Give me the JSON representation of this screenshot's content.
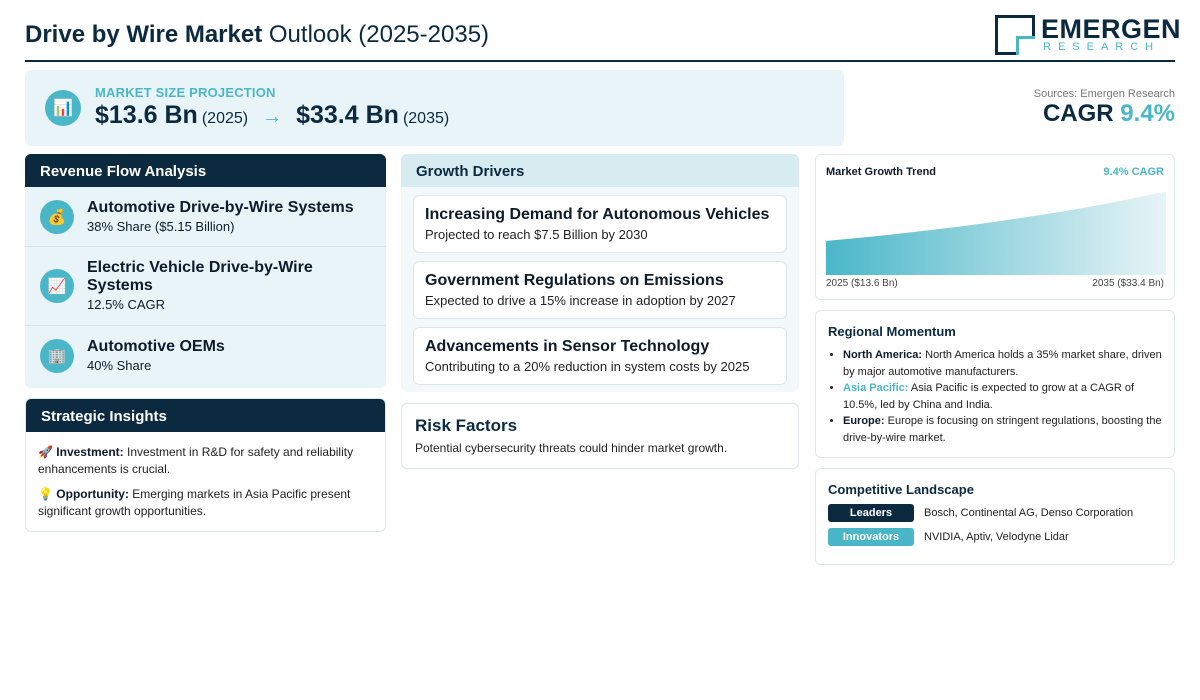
{
  "header": {
    "title_bold": "Drive by Wire Market",
    "title_rest": "Outlook (2025-2035)",
    "logo_name": "EMERGEN",
    "logo_sub": "RESEARCH"
  },
  "market": {
    "label": "MARKET SIZE PROJECTION",
    "value_start": "$13.6 Bn",
    "year_start": "(2025)",
    "arrow": "→",
    "value_end": "$33.4 Bn",
    "year_end": "(2035)",
    "icon": "bar-chart-icon"
  },
  "sources": "Sources: Emergen Research",
  "cagr": {
    "label": "CAGR",
    "value": "9.4%"
  },
  "revenue": {
    "title": "Revenue Flow Analysis",
    "items": [
      {
        "icon": "money-bag-icon",
        "glyph": "💰",
        "title": "Automotive Drive-by-Wire Systems",
        "sub": "38% Share ($5.15 Billion)"
      },
      {
        "icon": "trend-up-icon",
        "glyph": "📈",
        "title": "Electric Vehicle Drive-by-Wire Systems",
        "sub": "12.5% CAGR"
      },
      {
        "icon": "building-icon",
        "glyph": "🏢",
        "title": "Automotive OEMs",
        "sub": "40% Share"
      }
    ]
  },
  "insights": {
    "title": "Strategic Insights",
    "items": [
      {
        "icon": "rocket-icon",
        "glyph": "🚀",
        "label": "Investment:",
        "text": "Investment in R&D for safety and reliability enhancements is crucial."
      },
      {
        "icon": "lightbulb-icon",
        "glyph": "💡",
        "label": "Opportunity:",
        "text": "Emerging markets in Asia Pacific present significant growth opportunities."
      }
    ]
  },
  "drivers": {
    "title": "Growth Drivers",
    "items": [
      {
        "title": "Increasing Demand for Autonomous Vehicles",
        "sub": "Projected to reach $7.5 Billion by 2030"
      },
      {
        "title": "Government Regulations on Emissions",
        "sub": "Expected to drive a 15% increase in adoption by 2027"
      },
      {
        "title": "Advancements in Sensor Technology",
        "sub": "Contributing to a 20% reduction in system costs by 2025"
      }
    ]
  },
  "risk": {
    "title": "Risk Factors",
    "sub": "Potential cybersecurity threats could hinder market growth."
  },
  "trend": {
    "title": "Market Growth Trend",
    "cagr": "9.4% CAGR",
    "start_label": "2025 ($13.6 Bn)",
    "end_label": "2035 ($33.4 Bn)"
  },
  "chart_data": {
    "type": "area",
    "title": "Market Growth Trend",
    "x": [
      2025,
      2035
    ],
    "y": [
      13.6,
      33.4
    ],
    "x_labels": [
      "2025 ($13.6 Bn)",
      "2035 ($33.4 Bn)"
    ],
    "annotation": "9.4% CAGR",
    "series": [
      {
        "values": [
          13.6,
          33.4
        ]
      }
    ],
    "grid": false,
    "colors": {
      "fill_start": "#4ab7c8",
      "fill_end": "#e8f4f7"
    }
  },
  "regional": {
    "title": "Regional Momentum",
    "items": [
      {
        "label": "North America:",
        "text": "North America holds a 35% market share, driven by major automotive manufacturers.",
        "highlight": false
      },
      {
        "label": "Asia Pacific:",
        "text": "Asia Pacific is expected to grow at a CAGR of 10.5%, led by China and India.",
        "highlight": true
      },
      {
        "label": "Europe:",
        "text": "Europe is focusing on stringent regulations, boosting the drive-by-wire market.",
        "highlight": false
      }
    ]
  },
  "competitive": {
    "title": "Competitive Landscape",
    "rows": [
      {
        "tag": "Leaders",
        "names": "Bosch, Continental AG, Denso Corporation",
        "color": "#0b2a40"
      },
      {
        "tag": "Innovators",
        "names": "NVIDIA, Aptiv, Velodyne Lidar",
        "color": "#4ab7c8"
      }
    ]
  },
  "colors": {
    "navy": "#0b2a40",
    "accent": "#4ab7c8",
    "panel": "#e8f4f7"
  }
}
